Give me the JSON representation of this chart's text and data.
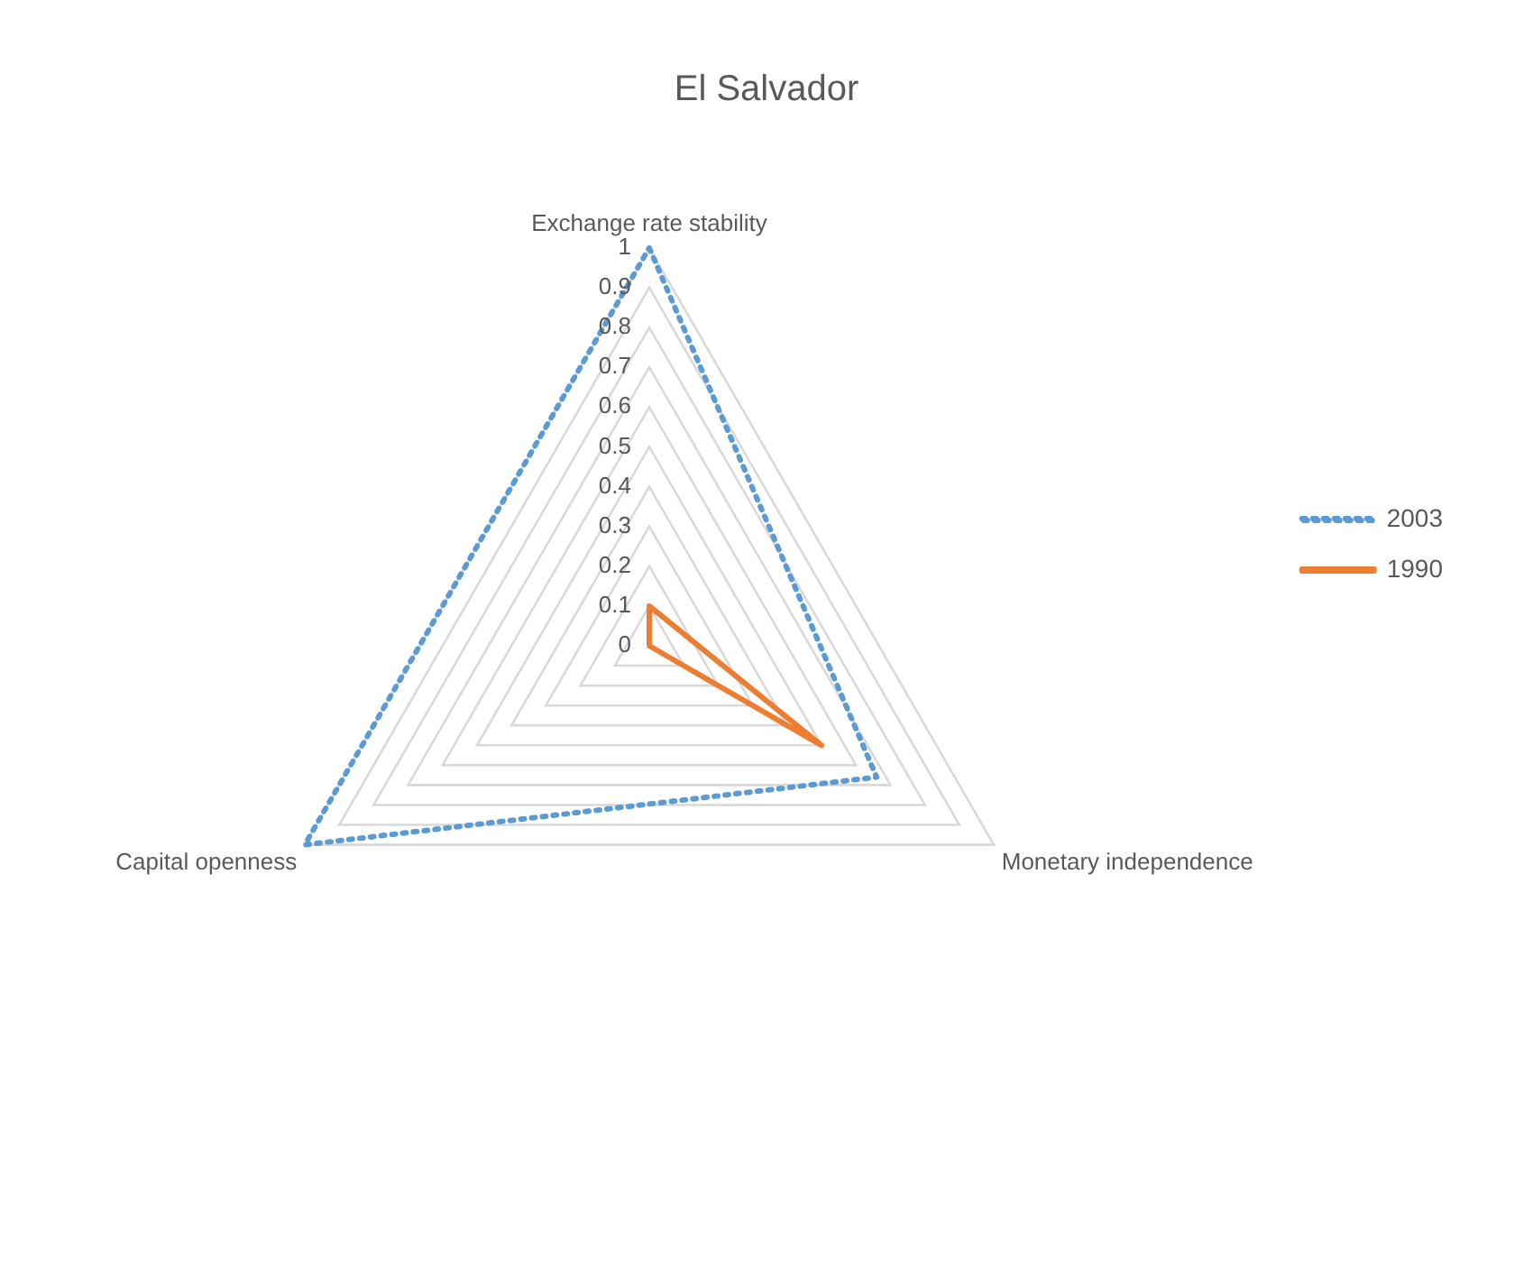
{
  "chart_data": {
    "type": "radar",
    "title": "El Salvador",
    "categories": [
      "Exchange rate stability",
      "Monetary independence",
      "Capital openness"
    ],
    "series": [
      {
        "name": "2003",
        "color": "#5b9bd5",
        "line_style": "dotted",
        "values": [
          1,
          0.66,
          1
        ]
      },
      {
        "name": "1990",
        "color": "#ed7d31",
        "line_style": "solid",
        "values": [
          0.1,
          0.5,
          0
        ]
      }
    ],
    "ylim": [
      0,
      1
    ],
    "yticks": [
      0,
      0.1,
      0.2,
      0.3,
      0.4,
      0.5,
      0.6,
      0.7,
      0.8,
      0.9,
      1
    ],
    "grid": true,
    "legend": "right",
    "marker": "none"
  }
}
